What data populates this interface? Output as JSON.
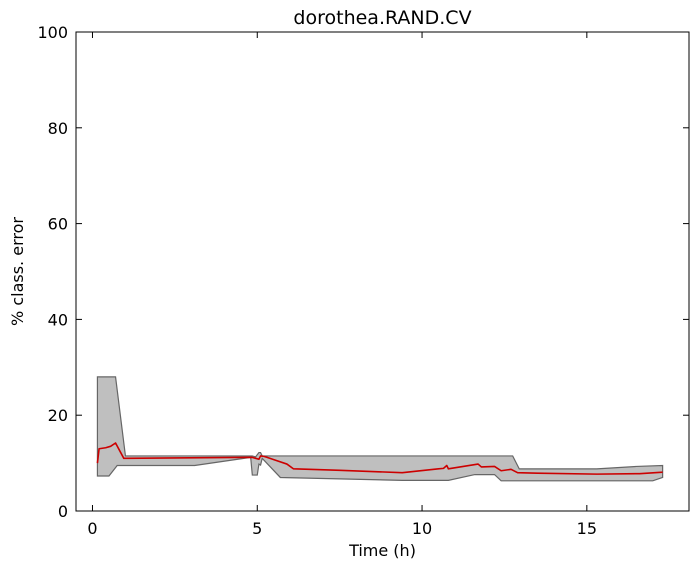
{
  "chart_data": {
    "type": "line",
    "title": "dorothea.RAND.CV",
    "xlabel": "Time (h)",
    "ylabel": "% class. error",
    "xlim": [
      -0.5,
      18.1
    ],
    "ylim": [
      0,
      100
    ],
    "xticks": [
      0,
      5,
      10,
      15
    ],
    "yticks": [
      0,
      20,
      40,
      60,
      80,
      100
    ],
    "grid": false,
    "series": [
      {
        "role": "mean",
        "color": "#cc0000",
        "points": [
          [
            0.15,
            10.0
          ],
          [
            0.2,
            13.0
          ],
          [
            0.4,
            13.2
          ],
          [
            0.55,
            13.5
          ],
          [
            0.7,
            14.2
          ],
          [
            0.95,
            11.0
          ],
          [
            1.0,
            11.0
          ],
          [
            4.85,
            11.2
          ],
          [
            4.95,
            11.0
          ],
          [
            5.05,
            10.8
          ],
          [
            5.1,
            11.5
          ],
          [
            5.2,
            11.4
          ],
          [
            5.3,
            11.2
          ],
          [
            5.6,
            10.5
          ],
          [
            5.9,
            9.8
          ],
          [
            6.1,
            8.8
          ],
          [
            7.5,
            8.5
          ],
          [
            9.4,
            8.0
          ],
          [
            10.5,
            8.8
          ],
          [
            10.65,
            8.9
          ],
          [
            10.75,
            9.5
          ],
          [
            10.8,
            8.8
          ],
          [
            11.7,
            9.8
          ],
          [
            11.8,
            9.2
          ],
          [
            12.2,
            9.3
          ],
          [
            12.4,
            8.4
          ],
          [
            12.7,
            8.7
          ],
          [
            12.9,
            8.0
          ],
          [
            13.5,
            7.9
          ],
          [
            15.3,
            7.7
          ],
          [
            16.6,
            7.8
          ],
          [
            17.3,
            8.1
          ]
        ]
      }
    ],
    "band": {
      "color": "#bfbfbf",
      "edge_color": "#666666",
      "upper": [
        [
          0.15,
          28.0
        ],
        [
          0.7,
          28.0
        ],
        [
          1.0,
          11.5
        ],
        [
          4.8,
          11.5
        ],
        [
          4.85,
          11.5
        ],
        [
          4.95,
          11.3
        ],
        [
          5.05,
          12.2
        ],
        [
          5.1,
          12.2
        ],
        [
          5.15,
          11.5
        ],
        [
          5.3,
          11.5
        ],
        [
          11.7,
          11.5
        ],
        [
          12.75,
          11.5
        ],
        [
          12.95,
          8.8
        ],
        [
          15.3,
          8.8
        ],
        [
          16.5,
          9.3
        ],
        [
          17.3,
          9.5
        ]
      ],
      "lower": [
        [
          0.15,
          7.3
        ],
        [
          0.5,
          7.3
        ],
        [
          0.75,
          9.5
        ],
        [
          3.1,
          9.5
        ],
        [
          4.8,
          11.2
        ],
        [
          4.85,
          7.5
        ],
        [
          5.0,
          7.5
        ],
        [
          5.05,
          9.8
        ],
        [
          5.1,
          9.6
        ],
        [
          5.15,
          11.0
        ],
        [
          5.7,
          7.0
        ],
        [
          9.4,
          6.4
        ],
        [
          10.8,
          6.4
        ],
        [
          11.6,
          7.6
        ],
        [
          12.2,
          7.6
        ],
        [
          12.4,
          6.3
        ],
        [
          17.0,
          6.3
        ],
        [
          17.3,
          7.0
        ]
      ]
    }
  }
}
